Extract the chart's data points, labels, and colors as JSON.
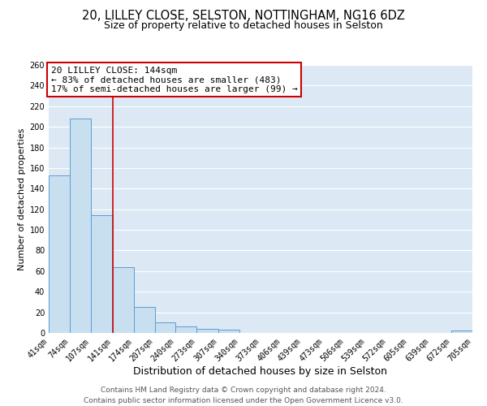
{
  "title1": "20, LILLEY CLOSE, SELSTON, NOTTINGHAM, NG16 6DZ",
  "title2": "Size of property relative to detached houses in Selston",
  "xlabel": "Distribution of detached houses by size in Selston",
  "ylabel": "Number of detached properties",
  "bin_edges": [
    41,
    74,
    107,
    141,
    174,
    207,
    240,
    273,
    307,
    340,
    373,
    406,
    439,
    473,
    506,
    539,
    572,
    605,
    639,
    672,
    705
  ],
  "bin_labels": [
    "41sqm",
    "74sqm",
    "107sqm",
    "141sqm",
    "174sqm",
    "207sqm",
    "240sqm",
    "273sqm",
    "307sqm",
    "340sqm",
    "373sqm",
    "406sqm",
    "439sqm",
    "473sqm",
    "506sqm",
    "539sqm",
    "572sqm",
    "605sqm",
    "639sqm",
    "672sqm",
    "705sqm"
  ],
  "counts": [
    153,
    208,
    114,
    64,
    25,
    10,
    6,
    4,
    3,
    0,
    0,
    0,
    0,
    0,
    0,
    0,
    0,
    0,
    0,
    2,
    0
  ],
  "bar_color": "#c8dff0",
  "bar_edge_color": "#5b9bd5",
  "property_bin_index": 3,
  "vline_color": "#cc0000",
  "annotation_title": "20 LILLEY CLOSE: 144sqm",
  "annotation_line1": "← 83% of detached houses are smaller (483)",
  "annotation_line2": "17% of semi-detached houses are larger (99) →",
  "annotation_box_color": "#ffffff",
  "annotation_box_edge": "#cc0000",
  "ylim": [
    0,
    260
  ],
  "yticks": [
    0,
    20,
    40,
    60,
    80,
    100,
    120,
    140,
    160,
    180,
    200,
    220,
    240,
    260
  ],
  "footer1": "Contains HM Land Registry data © Crown copyright and database right 2024.",
  "footer2": "Contains public sector information licensed under the Open Government Licence v3.0.",
  "plot_bg_color": "#dce9f5",
  "fig_bg_color": "#ffffff",
  "grid_color": "#ffffff",
  "title1_fontsize": 10.5,
  "title2_fontsize": 9,
  "xlabel_fontsize": 9,
  "ylabel_fontsize": 8,
  "tick_fontsize": 7,
  "annot_fontsize": 8,
  "footer_fontsize": 6.5
}
